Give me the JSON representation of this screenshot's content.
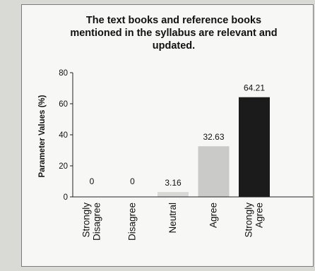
{
  "chart_data": {
    "type": "bar",
    "title_lines": [
      "The text books and reference books",
      "mentioned in the syllabus are relevant and",
      "updated."
    ],
    "ylabel": "Parameter Values (%)",
    "xlabel": "",
    "ylim": [
      0,
      80
    ],
    "yticks": [
      "0",
      "20",
      "40",
      "60",
      "80"
    ],
    "categories": [
      [
        "Strongly",
        "Disagree"
      ],
      [
        "Disagree"
      ],
      [
        "Neutral"
      ],
      [
        "Agree"
      ],
      [
        "Strongly",
        "Agree"
      ]
    ],
    "values": [
      0,
      0,
      3.16,
      32.63,
      64.21
    ],
    "value_labels": [
      "0",
      "0",
      "3.16",
      "32.63",
      "64.21"
    ],
    "bar_colors": [
      "#a8a8a8",
      "#a8a8a8",
      "#d8d8d6",
      "#cacac8",
      "#1b1b1b"
    ],
    "grid": false,
    "legend": "none"
  }
}
